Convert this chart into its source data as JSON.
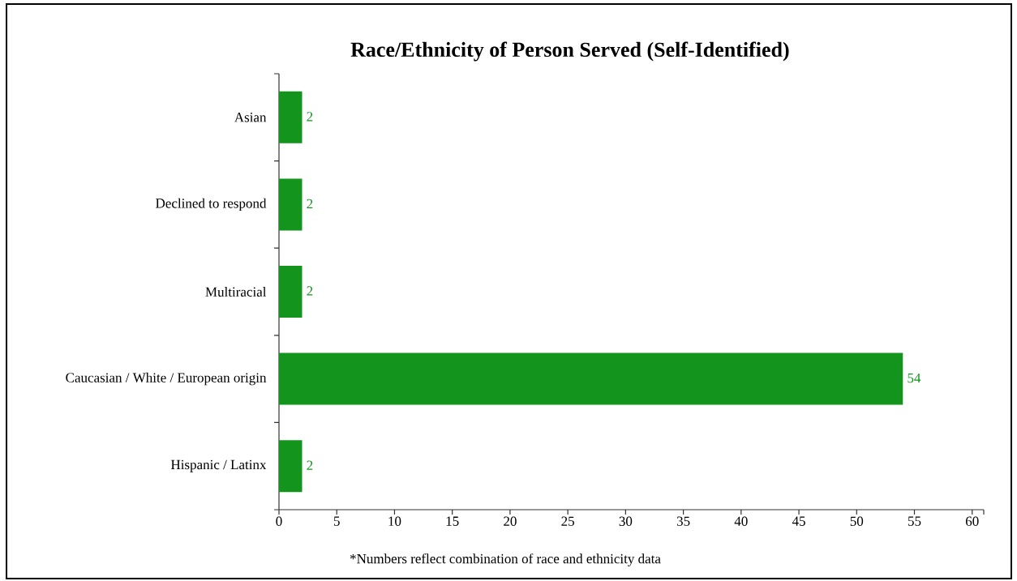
{
  "chart_data": {
    "type": "bar",
    "orientation": "horizontal",
    "title": "Race/Ethnicity of Person Served (Self-Identified)",
    "categories": [
      "Asian",
      "Declined to respond",
      "Multiracial",
      "Caucasian / White / European origin",
      "Hispanic / Latinx"
    ],
    "values": [
      2,
      2,
      2,
      54,
      2
    ],
    "color": "#12941d",
    "data_labels": true,
    "xlim": [
      0,
      61
    ],
    "xticks": [
      0,
      5,
      10,
      15,
      20,
      25,
      30,
      35,
      40,
      45,
      50,
      55,
      60
    ],
    "annotations": [
      "*Numbers reflect combination of race and ethnicity data"
    ]
  }
}
